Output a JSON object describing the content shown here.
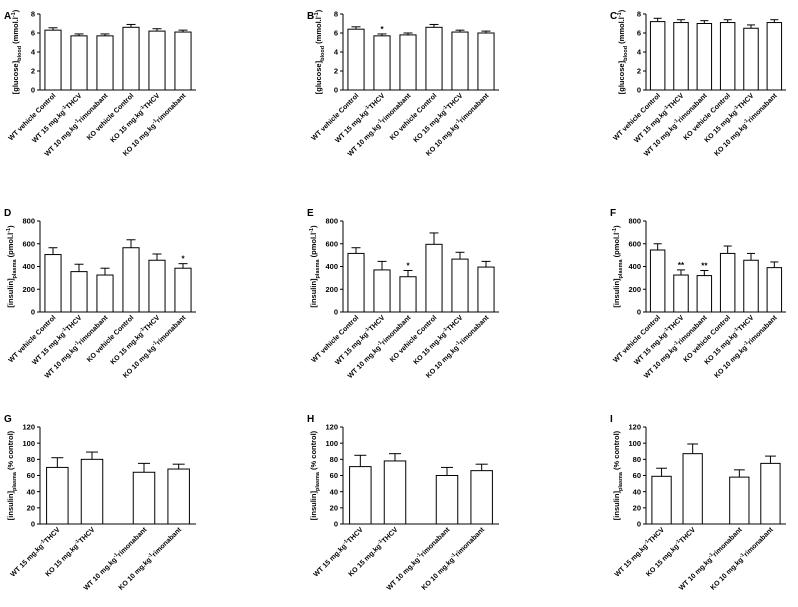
{
  "chart_data": [
    {
      "panel": "A",
      "type": "bar",
      "ylabel_main": "[glucose]",
      "ylabel_sub": "blood",
      "ylabel_unit": " (mmol.l",
      "ylabel_sup": "-1",
      "ylabel_end": ")",
      "ylim": [
        0,
        8
      ],
      "yticks": [
        "0",
        "2",
        "4",
        "6",
        "8"
      ],
      "categories": [
        {
          "pre": "WT vehicle Control",
          "sup": "",
          "post": ""
        },
        {
          "pre": "WT 15 mg.kg",
          "sup": "-1",
          "post": "THCV"
        },
        {
          "pre": "WT 10 mg.kg",
          "sup": "-1",
          "post": "rimonabant"
        },
        {
          "pre": "KO vehicle Control",
          "sup": "",
          "post": ""
        },
        {
          "pre": "KO 15 mg.kg",
          "sup": "-1",
          "post": "THCV"
        },
        {
          "pre": "KO 10 mg.kg",
          "sup": "-1",
          "post": "rimonabant"
        }
      ],
      "values": [
        6.3,
        5.7,
        5.7,
        6.6,
        6.2,
        6.1
      ],
      "errors": [
        0.25,
        0.2,
        0.2,
        0.3,
        0.25,
        0.2
      ],
      "sig": [
        "",
        "",
        "",
        "",
        "",
        ""
      ]
    },
    {
      "panel": "B",
      "type": "bar",
      "ylabel_main": "[glucose]",
      "ylabel_sub": "blood",
      "ylabel_unit": " (mmol.l",
      "ylabel_sup": "-1",
      "ylabel_end": ")",
      "ylim": [
        0,
        8
      ],
      "yticks": [
        "0",
        "2",
        "4",
        "6",
        "8"
      ],
      "categories": [
        {
          "pre": "WT vehicle Control",
          "sup": "",
          "post": ""
        },
        {
          "pre": "WT 15 mg.kg",
          "sup": "-1",
          "post": "THCV"
        },
        {
          "pre": "WT 10 mg.kg",
          "sup": "-1",
          "post": "rimonabant"
        },
        {
          "pre": "KO vehicle Control",
          "sup": "",
          "post": ""
        },
        {
          "pre": "KO 15 mg.kg",
          "sup": "-1",
          "post": "THCV"
        },
        {
          "pre": "KO 10 mg.kg",
          "sup": "-1",
          "post": "rimonabant"
        }
      ],
      "values": [
        6.4,
        5.7,
        5.8,
        6.6,
        6.1,
        6.0
      ],
      "errors": [
        0.25,
        0.2,
        0.2,
        0.3,
        0.2,
        0.2
      ],
      "sig": [
        "",
        "*",
        "",
        "",
        "",
        ""
      ]
    },
    {
      "panel": "C",
      "type": "bar",
      "ylabel_main": "[glucose]",
      "ylabel_sub": "blood",
      "ylabel_unit": " (mmol.l",
      "ylabel_sup": "-1",
      "ylabel_end": ")",
      "ylim": [
        0,
        8
      ],
      "yticks": [
        "0",
        "2",
        "4",
        "6",
        "8"
      ],
      "categories": [
        {
          "pre": "WT vehicle Control",
          "sup": "",
          "post": ""
        },
        {
          "pre": "WT 15 mg.kg",
          "sup": "-1",
          "post": "THCV"
        },
        {
          "pre": "WT 10 mg.kg",
          "sup": "-1",
          "post": "rimonabant"
        },
        {
          "pre": "KO vehicle Control",
          "sup": "",
          "post": ""
        },
        {
          "pre": "KO 15 mg.kg",
          "sup": "-1",
          "post": "THCV"
        },
        {
          "pre": "KO 10 mg.kg",
          "sup": "-1",
          "post": "rimonabant"
        }
      ],
      "values": [
        7.2,
        7.1,
        7.0,
        7.1,
        6.5,
        7.1
      ],
      "errors": [
        0.35,
        0.3,
        0.3,
        0.3,
        0.35,
        0.3
      ],
      "sig": [
        "",
        "",
        "",
        "",
        "",
        ""
      ]
    },
    {
      "panel": "D",
      "type": "bar",
      "ylabel_main": "[insulin]",
      "ylabel_sub": "plasma",
      "ylabel_unit": " (pmol.l",
      "ylabel_sup": "-1",
      "ylabel_end": ")",
      "ylim": [
        0,
        800
      ],
      "yticks": [
        "0",
        "200",
        "400",
        "600",
        "800"
      ],
      "categories": [
        {
          "pre": "WT vehicle Control",
          "sup": "",
          "post": ""
        },
        {
          "pre": "WT 15 mg.kg",
          "sup": "-1",
          "post": "THCV"
        },
        {
          "pre": "WT 10 mg.kg",
          "sup": "-1",
          "post": "rimonabant"
        },
        {
          "pre": "KO vehicle Control",
          "sup": "",
          "post": ""
        },
        {
          "pre": "KO 15 mg.kg",
          "sup": "-1",
          "post": "THCV"
        },
        {
          "pre": "KO 10 mg.kg",
          "sup": "-1",
          "post": "rimonabant"
        }
      ],
      "values": [
        505,
        355,
        325,
        565,
        455,
        385
      ],
      "errors": [
        60,
        65,
        60,
        70,
        55,
        40
      ],
      "sig": [
        "",
        "",
        "",
        "",
        "",
        "*"
      ]
    },
    {
      "panel": "E",
      "type": "bar",
      "ylabel_main": "[insulin]",
      "ylabel_sub": "plasma",
      "ylabel_unit": " (pmol.l",
      "ylabel_sup": "-1",
      "ylabel_end": ")",
      "ylim": [
        0,
        800
      ],
      "yticks": [
        "0",
        "200",
        "400",
        "600",
        "800"
      ],
      "categories": [
        {
          "pre": "WT vehicle Control",
          "sup": "",
          "post": ""
        },
        {
          "pre": "WT 15 mg.kg",
          "sup": "-1",
          "post": "THCV"
        },
        {
          "pre": "WT 10 mg.kg",
          "sup": "-1",
          "post": "rimonabant"
        },
        {
          "pre": "KO vehicle Control",
          "sup": "",
          "post": ""
        },
        {
          "pre": "KO 15 mg.kg",
          "sup": "-1",
          "post": "THCV"
        },
        {
          "pre": "KO 10 mg.kg",
          "sup": "-1",
          "post": "rimonabant"
        }
      ],
      "values": [
        515,
        370,
        310,
        595,
        465,
        395
      ],
      "errors": [
        50,
        75,
        55,
        100,
        60,
        50
      ],
      "sig": [
        "",
        "",
        "*",
        "",
        "",
        ""
      ]
    },
    {
      "panel": "F",
      "type": "bar",
      "ylabel_main": "[insulin]",
      "ylabel_sub": "plasma",
      "ylabel_unit": " (pmol.l",
      "ylabel_sup": "-1",
      "ylabel_end": ")",
      "ylim": [
        0,
        800
      ],
      "yticks": [
        "0",
        "200",
        "400",
        "600",
        "800"
      ],
      "categories": [
        {
          "pre": "WT vehicle Control",
          "sup": "",
          "post": ""
        },
        {
          "pre": "WT 15 mg.kg",
          "sup": "-1",
          "post": "THCV"
        },
        {
          "pre": "WT 10 mg.kg",
          "sup": "-1",
          "post": "rimonabant"
        },
        {
          "pre": "KO vehicle Control",
          "sup": "",
          "post": ""
        },
        {
          "pre": "KO 15 mg.kg",
          "sup": "-1",
          "post": "THCV"
        },
        {
          "pre": "KO 10 mg.kg",
          "sup": "-1",
          "post": "rimonabant"
        }
      ],
      "values": [
        545,
        325,
        320,
        515,
        455,
        390
      ],
      "errors": [
        55,
        45,
        45,
        65,
        60,
        50
      ],
      "sig": [
        "",
        "**",
        "**",
        "",
        "",
        ""
      ]
    },
    {
      "panel": "G",
      "type": "bar",
      "ylabel_main": "[insulin]",
      "ylabel_sub": "plasma",
      "ylabel_unit": " (% control)",
      "ylabel_sup": "",
      "ylabel_end": "",
      "ylim": [
        0,
        120
      ],
      "yticks": [
        "0",
        "20",
        "40",
        "60",
        "80",
        "100",
        "120"
      ],
      "categories": [
        {
          "pre": "WT 15 mg.kg",
          "sup": "-1",
          "post": "THCV"
        },
        {
          "pre": "KO 15 mg.kg",
          "sup": "-1",
          "post": "THCV"
        },
        {
          "pre": "WT 10 mg.kg",
          "sup": "-1",
          "post": "rimonabant"
        },
        {
          "pre": "KO 10 mg.kg",
          "sup": "-1",
          "post": "rimonabant"
        }
      ],
      "values": [
        70,
        80,
        64,
        68
      ],
      "errors": [
        12,
        9,
        11,
        6
      ],
      "sig": [
        "",
        "",
        "",
        ""
      ]
    },
    {
      "panel": "H",
      "type": "bar",
      "ylabel_main": "[insulin]",
      "ylabel_sub": "plasma",
      "ylabel_unit": " (% control)",
      "ylabel_sup": "",
      "ylabel_end": "",
      "ylim": [
        0,
        120
      ],
      "yticks": [
        "0",
        "20",
        "40",
        "60",
        "80",
        "100",
        "120"
      ],
      "categories": [
        {
          "pre": "WT 15 mg.kg",
          "sup": "-1",
          "post": "THCV"
        },
        {
          "pre": "KO 15 mg.kg",
          "sup": "-1",
          "post": "THCV"
        },
        {
          "pre": "WT 10 mg.kg",
          "sup": "-1",
          "post": "rimonabant"
        },
        {
          "pre": "KO 10 mg.kg",
          "sup": "-1",
          "post": "rimonabant"
        }
      ],
      "values": [
        71,
        78,
        60,
        66
      ],
      "errors": [
        14,
        9,
        10,
        8
      ],
      "sig": [
        "",
        "",
        "",
        ""
      ]
    },
    {
      "panel": "I",
      "type": "bar",
      "ylabel_main": "[insulin]",
      "ylabel_sub": "plasma",
      "ylabel_unit": " (% control)",
      "ylabel_sup": "",
      "ylabel_end": "",
      "ylim": [
        0,
        120
      ],
      "yticks": [
        "0",
        "20",
        "40",
        "60",
        "80",
        "100",
        "120"
      ],
      "categories": [
        {
          "pre": "WT 15 mg.kg",
          "sup": "-1",
          "post": "THCV"
        },
        {
          "pre": "KO 15 mg.kg",
          "sup": "-1",
          "post": "THCV"
        },
        {
          "pre": "WT 10 mg.kg",
          "sup": "-1",
          "post": "rimonabant"
        },
        {
          "pre": "KO 10 mg.kg",
          "sup": "-1",
          "post": "rimonabant"
        }
      ],
      "values": [
        59,
        87,
        58,
        75
      ],
      "errors": [
        10,
        12,
        9,
        9
      ],
      "sig": [
        "",
        "",
        "",
        ""
      ]
    }
  ]
}
